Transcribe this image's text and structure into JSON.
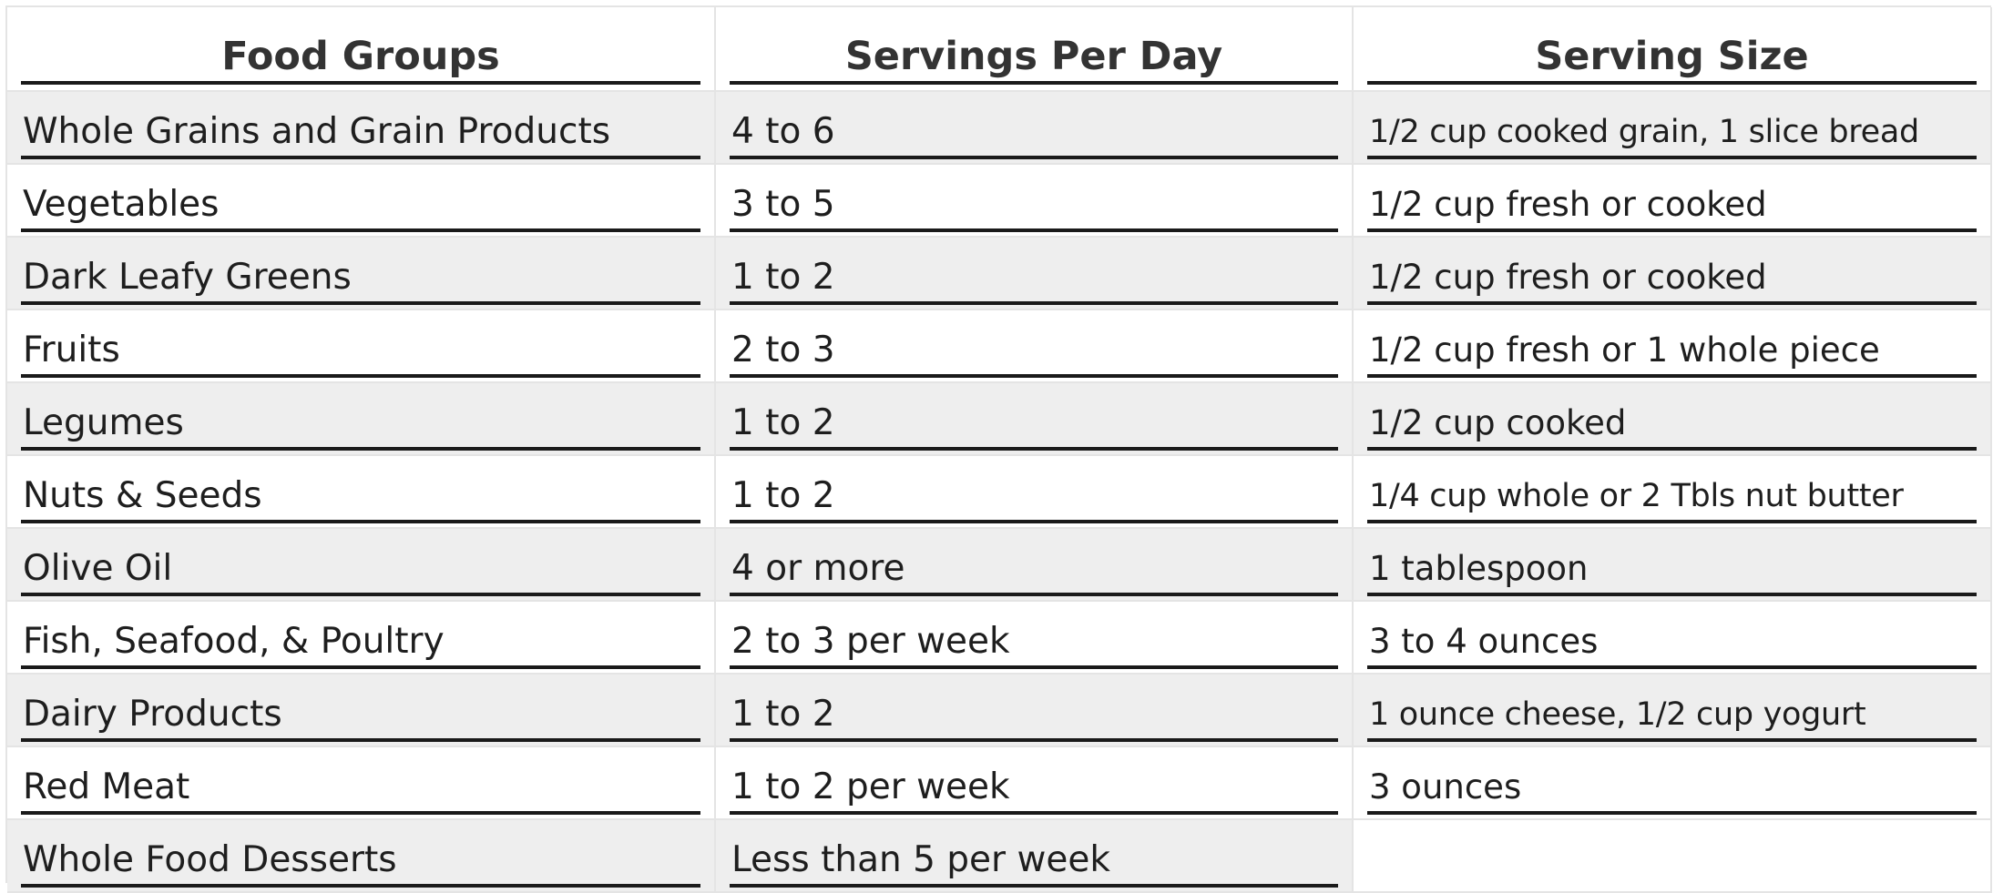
{
  "table": {
    "headers": [
      "Food Groups",
      "Servings Per Day",
      "Serving Size"
    ],
    "rows": [
      {
        "group": "Whole Grains and Grain Products",
        "servings": "4 to 6",
        "size": "1/2 cup cooked grain, 1 slice bread"
      },
      {
        "group": "Vegetables",
        "servings": "3 to 5",
        "size": "1/2 cup fresh or cooked"
      },
      {
        "group": "Dark Leafy Greens",
        "servings": "1 to 2",
        "size": "1/2 cup fresh or cooked"
      },
      {
        "group": "Fruits",
        "servings": "2 to 3",
        "size": "1/2 cup fresh or 1 whole piece"
      },
      {
        "group": "Legumes",
        "servings": "1 to 2",
        "size": "1/2 cup cooked"
      },
      {
        "group": "Nuts & Seeds",
        "servings": "1 to 2",
        "size": "1/4 cup whole or 2 Tbls nut butter"
      },
      {
        "group": "Olive Oil",
        "servings": "4 or more",
        "size": "1 tablespoon"
      },
      {
        "group": "Fish, Seafood, & Poultry",
        "servings": "2 to 3 per week",
        "size": "3 to 4 ounces"
      },
      {
        "group": "Dairy Products",
        "servings": "1 to 2",
        "size": "1 ounce cheese, 1/2 cup yogurt"
      },
      {
        "group": "Red Meat",
        "servings": "1 to 2 per week",
        "size": "3 ounces"
      },
      {
        "group": "Whole Food Desserts",
        "servings": "Less than 5 per week",
        "size": ""
      }
    ]
  },
  "colors": {
    "shaded_row": "#eeeeee",
    "rule": "#1a1a1a",
    "grid": "#e4e4e4",
    "header_text": "#333333"
  }
}
